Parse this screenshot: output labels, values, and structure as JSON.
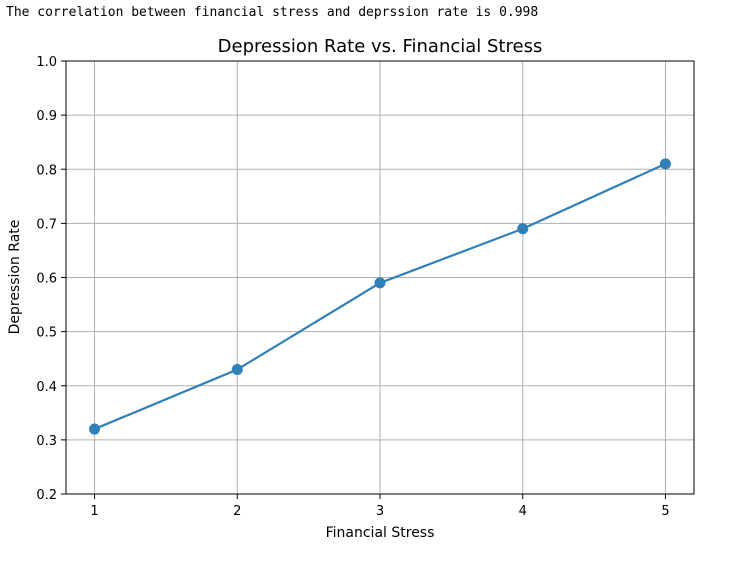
{
  "output": {
    "text": "The correlation between financial stress and deprssion rate is 0.998"
  },
  "chart_data": {
    "type": "line",
    "title": "Depression Rate vs. Financial Stress",
    "xlabel": "Financial Stress",
    "ylabel": "Depression Rate",
    "x": [
      1,
      2,
      3,
      4,
      5
    ],
    "y": [
      0.32,
      0.43,
      0.59,
      0.69,
      0.81
    ],
    "xlim": [
      0.8,
      5.2
    ],
    "ylim": [
      0.2,
      1.0
    ],
    "xticks": [
      "1",
      "2",
      "3",
      "4",
      "5"
    ],
    "yticks": [
      "0.2",
      "0.3",
      "0.4",
      "0.5",
      "0.6",
      "0.7",
      "0.8",
      "0.9",
      "1.0"
    ],
    "grid": true,
    "marker": "circle",
    "color": "#2f7fb8"
  }
}
